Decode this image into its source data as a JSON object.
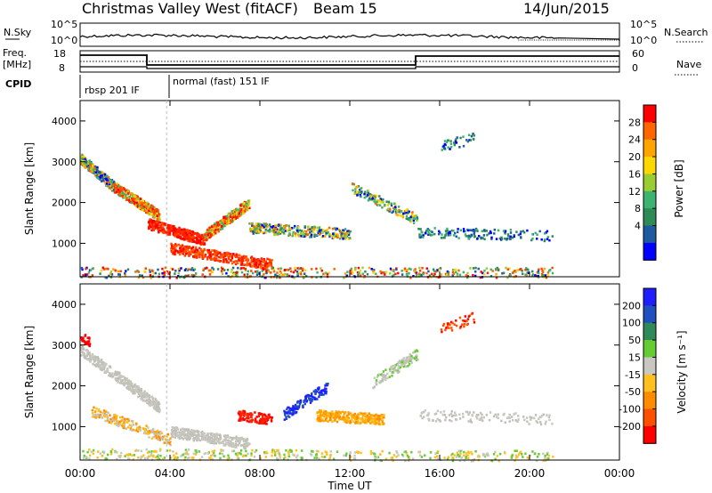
{
  "header": {
    "station": "Christmas Valley West (fitACF)",
    "beam": "Beam 15",
    "date": "14/Jun/2015"
  },
  "sky_panel": {
    "left_label": "N.Sky",
    "left_ticks": [
      "10^5",
      "10^0"
    ],
    "right_ticks": [
      "10^5",
      "10^0"
    ],
    "right_label": "N.Search"
  },
  "freq_panel": {
    "left_label_1": "Freq.",
    "left_label_2": "[MHz]",
    "left_ticks": [
      "18",
      "8"
    ],
    "right_ticks": [
      "60",
      "0"
    ],
    "right_label": "Nave"
  },
  "cpid": {
    "label": "CPID",
    "modes": [
      "rbsp 201 IF",
      "normal (fast) 151 IF"
    ]
  },
  "chart_data": [
    {
      "type": "heatmap",
      "title": "",
      "ylabel": "Slant Range [km]",
      "xlabel": "",
      "ylim": [
        180,
        4500
      ],
      "yticks": [
        "4000",
        "3000",
        "2000",
        "1000"
      ],
      "colorbar": {
        "label": "Power [dB]",
        "ticks": [
          "28",
          "24",
          "20",
          "16",
          "12",
          "8",
          "4"
        ],
        "colors": [
          "#ff0000",
          "#ff6600",
          "#ffa500",
          "#ffd700",
          "#9acd32",
          "#3cb371",
          "#2e8b57",
          "#1e5aa0",
          "#0000ff"
        ]
      }
    },
    {
      "type": "heatmap",
      "title": "",
      "ylabel": "Slant Range [km]",
      "xlabel": "",
      "ylim": [
        180,
        4500
      ],
      "yticks": [
        "4000",
        "3000",
        "2000",
        "1000"
      ],
      "colorbar": {
        "label": "Velocity [m s⁻¹]",
        "ticks": [
          "200",
          "100",
          "50",
          "15",
          "-15",
          "-50",
          "-100",
          "-200"
        ],
        "colors": [
          "#1e1eff",
          "#2050c0",
          "#2e8b57",
          "#66cc33",
          "#c8c8c0",
          "#ffc020",
          "#ff8c00",
          "#ff5000",
          "#ff0000"
        ]
      }
    }
  ],
  "time_axis": {
    "label": "Time UT",
    "ticks": [
      "00:00",
      "04:00",
      "08:00",
      "12:00",
      "16:00",
      "20:00",
      "00:00"
    ],
    "range_hours": [
      0,
      24
    ],
    "mode_change_hours": 3.85
  },
  "colors": {
    "axis": "#000000",
    "dotted": "#000000"
  }
}
